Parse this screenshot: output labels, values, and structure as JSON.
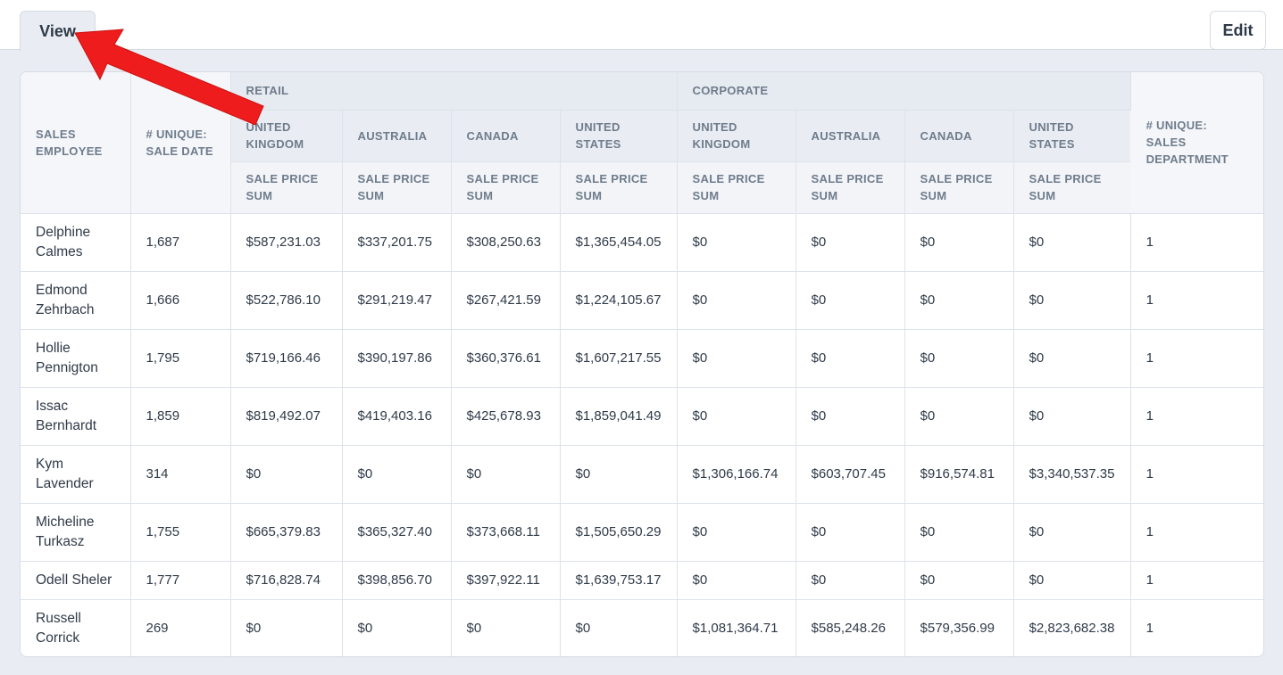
{
  "tabs": {
    "view": "View",
    "edit": "Edit"
  },
  "table": {
    "headers": {
      "sales_employee": "SALES EMPLOYEE",
      "unique_sale_date": "# UNIQUE: SALE DATE",
      "unique_sales_department": "# UNIQUE: SALES DEPARTMENT",
      "group_retail": "RETAIL",
      "group_corporate": "CORPORATE",
      "countries": [
        "UNITED KINGDOM",
        "AUSTRALIA",
        "CANADA",
        "UNITED STATES",
        "UNITED KINGDOM",
        "AUSTRALIA",
        "CANADA",
        "UNITED STATES"
      ],
      "metric": "SALE PRICE SUM"
    },
    "rows": [
      {
        "name": "Delphine Calmes",
        "dates": "1,687",
        "values": [
          "$587,231.03",
          "$337,201.75",
          "$308,250.63",
          "$1,365,454.05",
          "$0",
          "$0",
          "$0",
          "$0"
        ],
        "dept": "1"
      },
      {
        "name": "Edmond Zehrbach",
        "dates": "1,666",
        "values": [
          "$522,786.10",
          "$291,219.47",
          "$267,421.59",
          "$1,224,105.67",
          "$0",
          "$0",
          "$0",
          "$0"
        ],
        "dept": "1"
      },
      {
        "name": "Hollie Pennigton",
        "dates": "1,795",
        "values": [
          "$719,166.46",
          "$390,197.86",
          "$360,376.61",
          "$1,607,217.55",
          "$0",
          "$0",
          "$0",
          "$0"
        ],
        "dept": "1"
      },
      {
        "name": "Issac Bernhardt",
        "dates": "1,859",
        "values": [
          "$819,492.07",
          "$419,403.16",
          "$425,678.93",
          "$1,859,041.49",
          "$0",
          "$0",
          "$0",
          "$0"
        ],
        "dept": "1"
      },
      {
        "name": "Kym Lavender",
        "dates": "314",
        "values": [
          "$0",
          "$0",
          "$0",
          "$0",
          "$1,306,166.74",
          "$603,707.45",
          "$916,574.81",
          "$3,340,537.35"
        ],
        "dept": "1"
      },
      {
        "name": "Micheline Turkasz",
        "dates": "1,755",
        "values": [
          "$665,379.83",
          "$365,327.40",
          "$373,668.11",
          "$1,505,650.29",
          "$0",
          "$0",
          "$0",
          "$0"
        ],
        "dept": "1"
      },
      {
        "name": "Odell Sheler",
        "dates": "1,777",
        "values": [
          "$716,828.74",
          "$398,856.70",
          "$397,922.11",
          "$1,639,753.17",
          "$0",
          "$0",
          "$0",
          "$0"
        ],
        "dept": "1"
      },
      {
        "name": "Russell Corrick",
        "dates": "269",
        "values": [
          "$0",
          "$0",
          "$0",
          "$0",
          "$1,081,364.71",
          "$585,248.26",
          "$579,356.99",
          "$2,823,682.38"
        ],
        "dept": "1"
      }
    ]
  },
  "annotation": {
    "arrow_color": "#ee1c1c"
  }
}
